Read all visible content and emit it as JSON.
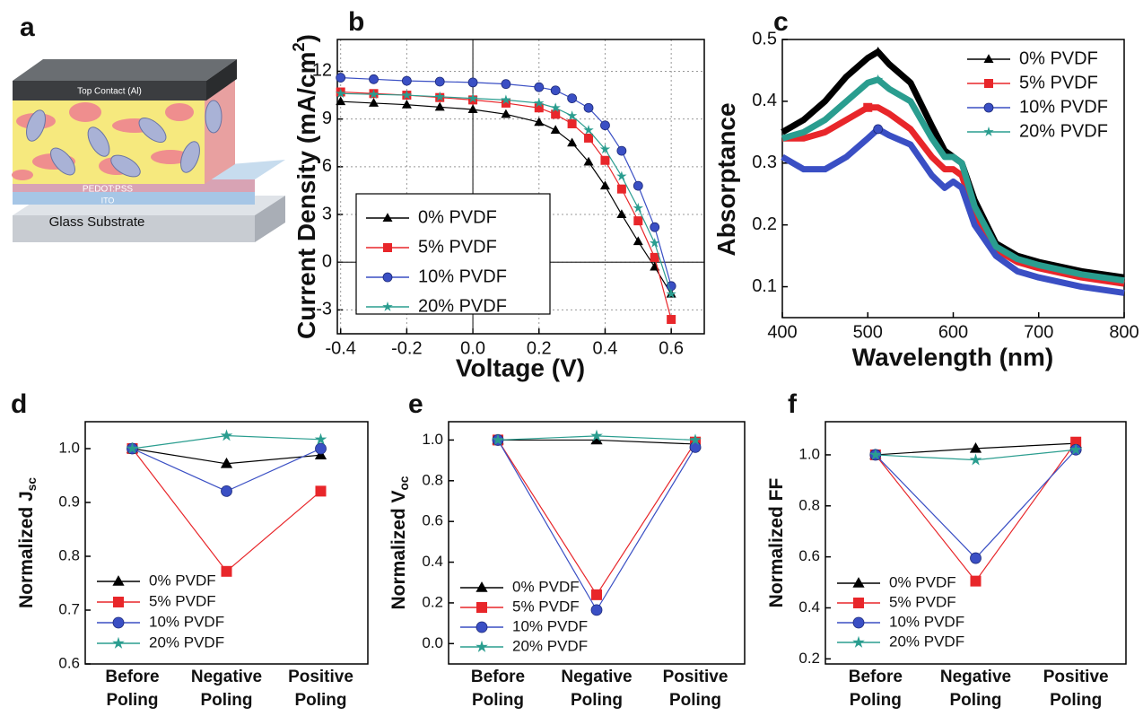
{
  "diagram": {
    "panel_label": "a",
    "labels": [
      "Top Contact (Al)",
      "PEDOT:PSS",
      "ITO",
      "Glass Substrate"
    ]
  },
  "chart_data": [
    {
      "type": "line",
      "panel_label": "b",
      "x_label": "Voltage (V)",
      "y_label": "Current Density (mA/cm",
      "y_label_sup": "2",
      "y_label_end": ")",
      "x": [
        -0.4,
        -0.3,
        -0.2,
        -0.1,
        0,
        0.1,
        0.2,
        0.25,
        0.3,
        0.35,
        0.4,
        0.45,
        0.5,
        0.55,
        0.6
      ],
      "xlim": [
        -0.41,
        0.7
      ],
      "ylim": [
        -4.5,
        14
      ],
      "grid": true,
      "zero_lines": true,
      "legend": "lower left",
      "legend_box": true,
      "xticks": [
        -0.4,
        -0.2,
        {
          "value": 0,
          "label": "0.0"
        },
        0.2,
        0.4,
        0.6
      ],
      "yticks": [
        -3,
        0,
        3,
        6,
        9,
        12
      ],
      "series": [
        {
          "name": "0% PVDF",
          "color": "#000000",
          "marker": "triangle",
          "values": [
            10.1,
            10.0,
            9.9,
            9.75,
            9.6,
            9.3,
            8.8,
            8.3,
            7.5,
            6.3,
            4.8,
            3.0,
            1.3,
            -0.3,
            -2.0
          ]
        },
        {
          "name": "5% PVDF",
          "color": "#e8262a",
          "marker": "square",
          "values": [
            10.7,
            10.6,
            10.5,
            10.35,
            10.2,
            10.0,
            9.7,
            9.3,
            8.7,
            7.8,
            6.4,
            4.6,
            2.6,
            0.3,
            -3.6
          ]
        },
        {
          "name": "10% PVDF",
          "color": "#3a4fc4",
          "marker": "circle",
          "values": [
            11.6,
            11.5,
            11.4,
            11.35,
            11.3,
            11.2,
            11.0,
            10.8,
            10.3,
            9.7,
            8.6,
            7.0,
            4.8,
            2.2,
            -1.5
          ]
        },
        {
          "name": "20% PVDF",
          "color": "#2a9d8f",
          "marker": "star",
          "values": [
            10.6,
            10.55,
            10.5,
            10.4,
            10.3,
            10.2,
            10.0,
            9.7,
            9.2,
            8.3,
            7.1,
            5.4,
            3.4,
            1.2,
            -2.0
          ]
        }
      ]
    },
    {
      "type": "line",
      "panel_label": "c",
      "x_label": "Wavelength (nm)",
      "y_label": "Absorptance",
      "x": [
        400,
        425,
        450,
        475,
        500,
        512,
        525,
        550,
        575,
        590,
        600,
        610,
        625,
        650,
        675,
        700,
        750,
        800
      ],
      "xlim": [
        400,
        800
      ],
      "ylim": [
        0.05,
        0.5
      ],
      "legend": "upper right",
      "thick": true,
      "xticks": [
        400,
        500,
        600,
        700,
        800
      ],
      "yticks": [
        0.1,
        0.2,
        0.3,
        0.4,
        0.5
      ],
      "series": [
        {
          "name": "0% PVDF",
          "color": "#000000",
          "marker": "triangle",
          "values": [
            0.35,
            0.37,
            0.4,
            0.44,
            0.47,
            0.48,
            0.46,
            0.43,
            0.36,
            0.32,
            0.31,
            0.3,
            0.24,
            0.17,
            0.15,
            0.14,
            0.125,
            0.115
          ]
        },
        {
          "name": "5% PVDF",
          "color": "#e8262a",
          "marker": "square",
          "values": [
            0.34,
            0.34,
            0.35,
            0.37,
            0.39,
            0.39,
            0.38,
            0.355,
            0.31,
            0.29,
            0.29,
            0.28,
            0.22,
            0.16,
            0.14,
            0.13,
            0.115,
            0.105
          ]
        },
        {
          "name": "10% PVDF",
          "color": "#3a4fc4",
          "marker": "circle",
          "values": [
            0.31,
            0.29,
            0.29,
            0.31,
            0.34,
            0.355,
            0.345,
            0.33,
            0.28,
            0.26,
            0.27,
            0.26,
            0.2,
            0.15,
            0.125,
            0.115,
            0.1,
            0.09
          ]
        },
        {
          "name": "20% PVDF",
          "color": "#2a9d8f",
          "marker": "star",
          "values": [
            0.34,
            0.35,
            0.37,
            0.4,
            0.43,
            0.435,
            0.42,
            0.4,
            0.34,
            0.31,
            0.31,
            0.3,
            0.23,
            0.165,
            0.145,
            0.135,
            0.12,
            0.11
          ]
        }
      ]
    },
    {
      "type": "category-line",
      "panel_label": "d",
      "y_label": "Normalized J",
      "y_label_sub": "sc",
      "categories": [
        "Before Poling",
        "Negative Poling",
        "Positive Poling"
      ],
      "ylim": [
        0.6,
        1.05
      ],
      "legend": "lower left",
      "yticks": [
        0.6,
        0.7,
        0.8,
        0.9,
        {
          "value": 1,
          "label": "1.0"
        }
      ],
      "series": [
        {
          "name": "0% PVDF",
          "color": "#000000",
          "marker": "triangle",
          "values": [
            1.0,
            0.972,
            0.988
          ]
        },
        {
          "name": "5% PVDF",
          "color": "#e8262a",
          "marker": "square",
          "values": [
            1.0,
            0.772,
            0.921
          ]
        },
        {
          "name": "10% PVDF",
          "color": "#3a4fc4",
          "marker": "circle",
          "values": [
            1.0,
            0.921,
            1.0
          ]
        },
        {
          "name": "20% PVDF",
          "color": "#2a9d8f",
          "marker": "star",
          "values": [
            1.0,
            1.024,
            1.017
          ]
        }
      ]
    },
    {
      "type": "category-line",
      "panel_label": "e",
      "y_label": "Normalized V",
      "y_label_sub": "oc",
      "categories": [
        "Before Poling",
        "Negative Poling",
        "Positive Poling"
      ],
      "ylim": [
        -0.1,
        1.09
      ],
      "legend": "lower left",
      "yticks": [
        {
          "value": 0,
          "label": "0.0"
        },
        0.2,
        0.4,
        0.6,
        0.8,
        {
          "value": 1,
          "label": "1.0"
        }
      ],
      "series": [
        {
          "name": "0% PVDF",
          "color": "#000000",
          "marker": "triangle",
          "values": [
            1.0,
            1.0,
            0.98
          ]
        },
        {
          "name": "5% PVDF",
          "color": "#e8262a",
          "marker": "square",
          "values": [
            1.0,
            0.24,
            0.99
          ]
        },
        {
          "name": "10% PVDF",
          "color": "#3a4fc4",
          "marker": "circle",
          "values": [
            1.0,
            0.165,
            0.965
          ]
        },
        {
          "name": "20% PVDF",
          "color": "#2a9d8f",
          "marker": "star",
          "values": [
            1.0,
            1.02,
            1.0
          ]
        }
      ]
    },
    {
      "type": "category-line",
      "panel_label": "f",
      "y_label": "Normalized FF",
      "categories": [
        "Before Poling",
        "Negative Poling",
        "Positive Poling"
      ],
      "ylim": [
        0.18,
        1.13
      ],
      "legend": "lower left",
      "yticks": [
        0.2,
        0.4,
        0.6,
        0.8,
        {
          "value": 1,
          "label": "1.0"
        }
      ],
      "series": [
        {
          "name": "0% PVDF",
          "color": "#000000",
          "marker": "triangle",
          "values": [
            1.0,
            1.025,
            1.045
          ]
        },
        {
          "name": "5% PVDF",
          "color": "#e8262a",
          "marker": "square",
          "values": [
            1.0,
            0.505,
            1.05
          ]
        },
        {
          "name": "10% PVDF",
          "color": "#3a4fc4",
          "marker": "circle",
          "values": [
            1.0,
            0.595,
            1.02
          ]
        },
        {
          "name": "20% PVDF",
          "color": "#2a9d8f",
          "marker": "star",
          "values": [
            1.0,
            0.98,
            1.02
          ]
        }
      ]
    }
  ]
}
